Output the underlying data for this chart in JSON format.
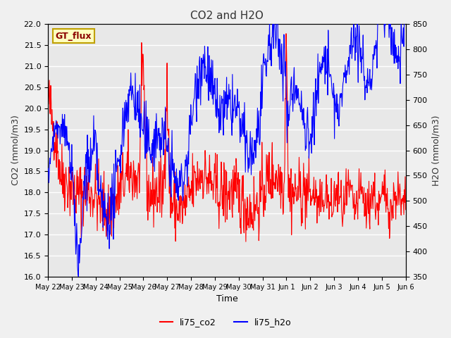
{
  "title": "CO2 and H2O",
  "xlabel": "Time",
  "ylabel_left": "CO2 (mmol/m3)",
  "ylabel_right": "H2O (mmol/m3)",
  "co2_ylim": [
    16.0,
    22.0
  ],
  "h2o_ylim": [
    350,
    850
  ],
  "co2_yticks": [
    16.0,
    16.5,
    17.0,
    17.5,
    18.0,
    18.5,
    19.0,
    19.5,
    20.0,
    20.5,
    21.0,
    21.5,
    22.0
  ],
  "h2o_yticks": [
    350,
    400,
    450,
    500,
    550,
    600,
    650,
    700,
    750,
    800,
    850
  ],
  "xtick_labels": [
    "May 22",
    "May 23",
    "May 24",
    "May 25",
    "May 26",
    "May 27",
    "May 28",
    "May 29",
    "May 30",
    "May 31",
    "Jun 1",
    "Jun 2",
    "Jun 3",
    "Jun 4",
    "Jun 5",
    "Jun 6"
  ],
  "annotation_text": "GT_flux",
  "annotation_bg": "#FFFFC0",
  "annotation_border": "#C0A000",
  "co2_color": "#FF0000",
  "h2o_color": "#0000FF",
  "legend_co2": "li75_co2",
  "legend_h2o": "li75_h2o",
  "background_color": "#E8E8E8",
  "grid_color": "#FFFFFF",
  "fig_bg": "#F0F0F0",
  "n_points": 800
}
